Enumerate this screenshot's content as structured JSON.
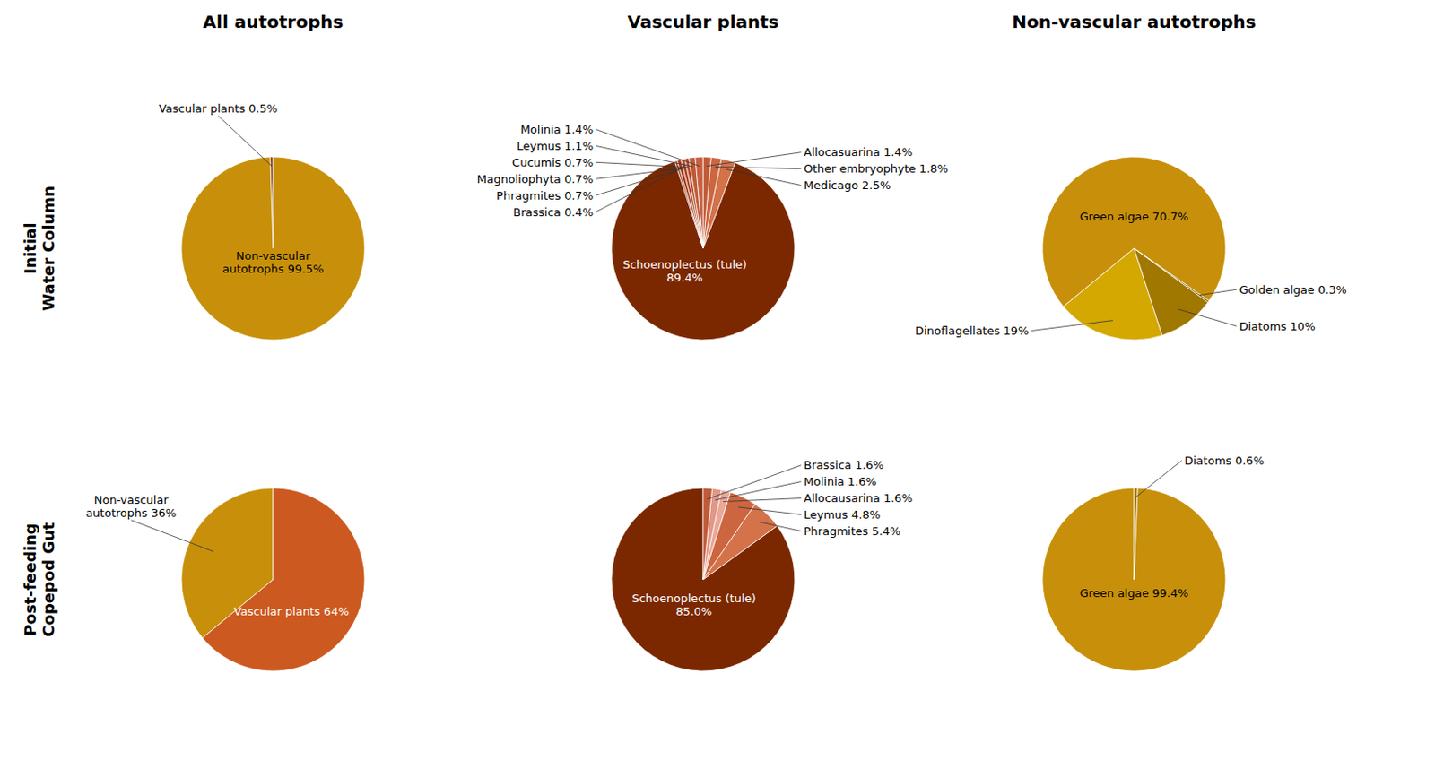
{
  "chart_data": [
    {
      "type": "pie",
      "title": "All autotrophs",
      "y_label": "Initial\nWater Column",
      "values": [
        0.5,
        99.5
      ],
      "colors": [
        "#7B3000",
        "#C8900A"
      ],
      "value_labels": [
        "Vascular plants 0.5%",
        "Non-vascular\nautotrophs 99.5%"
      ],
      "data_labels": true
    },
    {
      "type": "pie",
      "title": "Vascular plants",
      "values": [
        89.4,
        2.5,
        1.8,
        1.4,
        1.4,
        1.1,
        0.7,
        0.7,
        0.7,
        0.4
      ],
      "colors": [
        "#7B2800",
        "#D4724A",
        "#CC6640",
        "#C05A38",
        "#C86040",
        "#BE5A38",
        "#B85030",
        "#B04828",
        "#A84020",
        "#A04020"
      ],
      "value_labels": [
        "Schoenoplectus (tule)\n89.4%",
        "Medicago 2.5%",
        "Other embryophyte 1.8%",
        "Allocasuarina 1.4%",
        "Molinia 1.4%",
        "Leymus 1.1%",
        "Cucumis 0.7%",
        "Magnoliophyta 0.7%",
        "Phragmites 0.7%",
        "Brassica 0.4%"
      ],
      "data_labels": true
    },
    {
      "type": "pie",
      "title": "Non-vascular autotrophs",
      "values": [
        70.7,
        19.0,
        10.0,
        0.3
      ],
      "colors": [
        "#C8900A",
        "#D4A800",
        "#A07800",
        "#7A6000"
      ],
      "value_labels": [
        "Green algae 70.7%",
        "Dinoflagellates 19%",
        "Diatoms 10%",
        "Golden algae 0.3%"
      ],
      "data_labels": true
    },
    {
      "type": "pie",
      "y_label": "Post-feeding\nCopepod Gut",
      "values": [
        36.0,
        64.0
      ],
      "colors": [
        "#C8900A",
        "#CC5A20"
      ],
      "value_labels": [
        "Non-vascular\nautotrophs 36%",
        "Vascular plants 64%"
      ],
      "data_labels": true
    },
    {
      "type": "pie",
      "values": [
        85.0,
        5.4,
        4.8,
        1.6,
        1.6,
        1.6
      ],
      "colors": [
        "#7B2800",
        "#D4724A",
        "#CC6640",
        "#EAA898",
        "#E09888",
        "#C05A38"
      ],
      "value_labels": [
        "Schoenoplectus (tule)\n85.0%",
        "Phragmites 5.4%",
        "Leymus 4.8%",
        "Allocausarina 1.6%",
        "Molinia 1.6%",
        "Brassica 1.6%"
      ],
      "data_labels": true
    },
    {
      "type": "pie",
      "values": [
        99.4,
        0.6
      ],
      "colors": [
        "#C8900A",
        "#A07800"
      ],
      "value_labels": [
        "Green algae 99.4%",
        "Diatoms 0.6%"
      ],
      "data_labels": true
    }
  ]
}
